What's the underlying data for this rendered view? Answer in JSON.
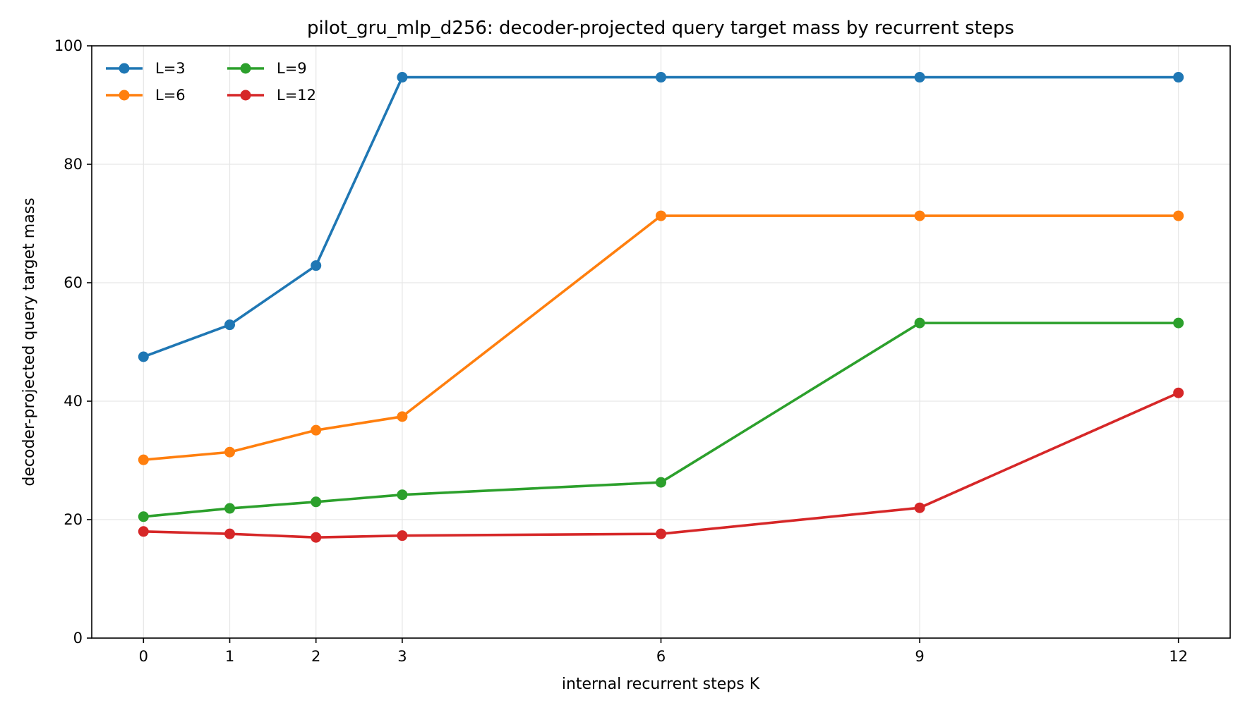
{
  "chart_data": {
    "type": "line",
    "title": "pilot_gru_mlp_d256: decoder-projected query target mass by recurrent steps",
    "xlabel": "internal recurrent steps K",
    "ylabel": "decoder-projected query target mass",
    "x": [
      0,
      1,
      2,
      3,
      6,
      9,
      12
    ],
    "xticks": [
      "0",
      "1",
      "2",
      "3",
      "6",
      "9",
      "12"
    ],
    "xlim": [
      -0.6,
      12.6
    ],
    "ylim": [
      0,
      100
    ],
    "yticks": [
      "0",
      "20",
      "40",
      "60",
      "80",
      "100"
    ],
    "grid": true,
    "legend_position": "top-left",
    "series": [
      {
        "name": "L=3",
        "color": "#1f77b4",
        "values": [
          47.5,
          52.9,
          62.9,
          94.7,
          94.7,
          94.7,
          94.7
        ]
      },
      {
        "name": "L=6",
        "color": "#ff7f0e",
        "values": [
          30.1,
          31.4,
          35.1,
          37.4,
          71.3,
          71.3,
          71.3
        ]
      },
      {
        "name": "L=9",
        "color": "#2ca02c",
        "values": [
          20.5,
          21.9,
          23.0,
          24.2,
          26.3,
          53.2,
          53.2
        ]
      },
      {
        "name": "L=12",
        "color": "#d62728",
        "values": [
          18.0,
          17.6,
          17.0,
          17.3,
          17.6,
          22.0,
          41.4
        ]
      }
    ]
  }
}
